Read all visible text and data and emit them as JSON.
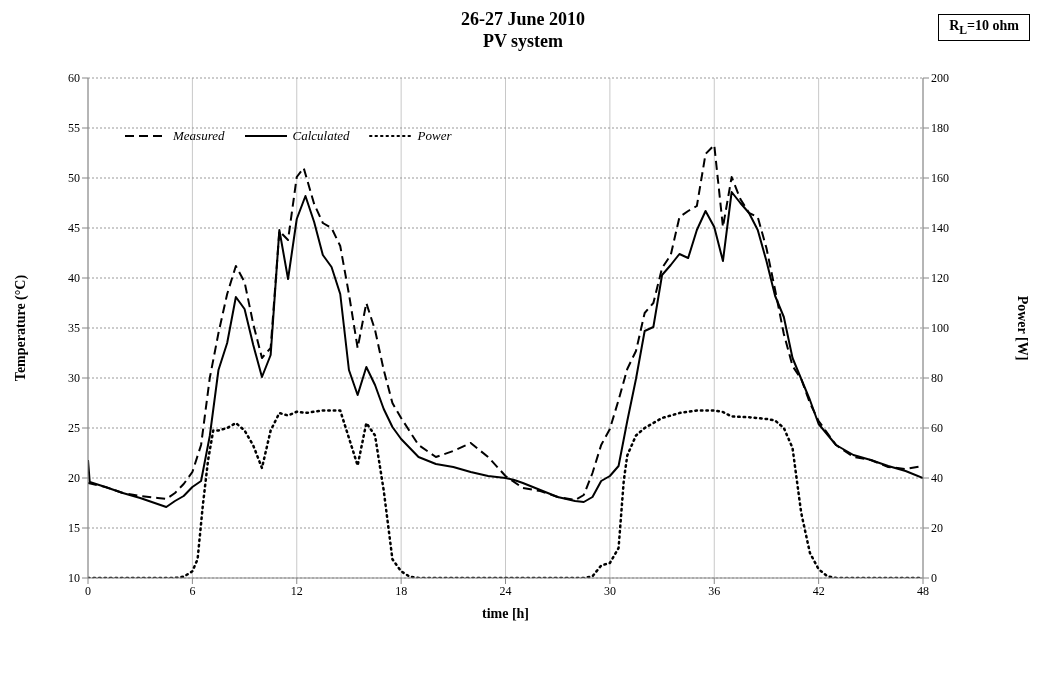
{
  "chart_data": {
    "type": "line",
    "title": "26-27 June 2010",
    "subtitle": "PV system",
    "xlabel": "time [h]",
    "ylabel": "Temperature (°C)",
    "y2label": "Power [W]",
    "annotations": [
      "R$_{L}$=10 ohm"
    ],
    "xlim": [
      0,
      48
    ],
    "xticks": [
      0,
      6,
      12,
      18,
      24,
      30,
      36,
      42,
      48
    ],
    "ylim": [
      10,
      60
    ],
    "yticks": [
      10,
      15,
      20,
      25,
      30,
      35,
      40,
      45,
      50,
      55,
      60
    ],
    "y2lim": [
      0,
      200
    ],
    "y2ticks": [
      0,
      20,
      40,
      60,
      80,
      100,
      120,
      140,
      160,
      180,
      200
    ],
    "grid": true,
    "legend": "top left",
    "marker": "none",
    "series": [
      {
        "name": "Measured",
        "color": "#000000",
        "line_style": "dashed",
        "x": [
          0,
          1,
          2,
          3,
          4,
          4.5,
          5,
          5.5,
          6,
          6.5,
          7,
          7.5,
          8,
          8.5,
          9,
          9.5,
          10,
          10.5,
          11,
          11.5,
          12,
          12.4,
          13,
          13.5,
          14,
          14.5,
          15,
          15.5,
          16,
          16.5,
          17,
          17.5,
          18,
          19,
          20,
          21,
          22,
          23,
          24,
          25,
          26,
          27,
          28,
          28.5,
          29,
          29.5,
          30,
          30.5,
          31,
          31.5,
          32,
          32.5,
          33,
          33.5,
          34,
          34.5,
          35,
          35.5,
          36,
          36.5,
          37,
          37.5,
          38,
          38.5,
          39,
          39.5,
          40,
          40.5,
          41,
          41.5,
          42,
          43,
          44,
          45,
          46,
          47,
          48
        ],
        "values": [
          19.5,
          19.1,
          18.5,
          18.2,
          18.0,
          17.9,
          18.5,
          19.4,
          20.6,
          23.3,
          30,
          34.5,
          38.4,
          41.2,
          39.6,
          35.4,
          32,
          33,
          44.7,
          43.8,
          50.1,
          51,
          47.4,
          45.5,
          45,
          43.2,
          38.4,
          33,
          37.5,
          34.8,
          30.8,
          27.5,
          26,
          23.3,
          22.1,
          22.7,
          23.5,
          22.1,
          20.2,
          19,
          18.7,
          18.1,
          17.8,
          18.3,
          20.5,
          23.3,
          24.9,
          27.8,
          30.9,
          32.7,
          36.5,
          37.5,
          41,
          42.3,
          46.1,
          46.7,
          47.2,
          52.4,
          53.3,
          45.1,
          50.1,
          47.9,
          46.5,
          46.1,
          43,
          38.8,
          34.4,
          31.2,
          29.9,
          27.5,
          25.7,
          23.3,
          22.1,
          21.8,
          21.1,
          20.9,
          21.2
        ]
      },
      {
        "name": "Calculated",
        "color": "#000000",
        "line_style": "solid",
        "x": [
          0,
          0.1,
          1,
          2,
          3,
          4,
          4.5,
          5,
          5.5,
          6,
          6.5,
          7,
          7.5,
          8,
          8.5,
          9,
          9.5,
          10,
          10.5,
          11,
          11.5,
          12,
          12.5,
          13,
          13.5,
          14,
          14.5,
          15,
          15.5,
          16,
          16.5,
          17,
          17.5,
          18,
          19,
          20,
          21,
          22,
          23,
          24,
          24.5,
          25,
          26,
          27,
          28,
          28.5,
          29,
          29.5,
          30,
          30.5,
          31,
          31.5,
          32,
          32.5,
          33,
          33.5,
          34,
          34.5,
          35,
          35.5,
          36,
          36.5,
          37,
          37.5,
          38,
          38.5,
          39,
          39.5,
          40,
          40.5,
          41,
          41.5,
          42,
          43,
          44,
          45,
          46,
          47,
          48
        ],
        "values": [
          21.8,
          19.6,
          19.1,
          18.5,
          18,
          17.4,
          17.1,
          17.7,
          18.2,
          19.1,
          19.7,
          24.2,
          30.8,
          33.5,
          38.1,
          36.9,
          33.3,
          30.1,
          32.3,
          44.8,
          39.9,
          45.9,
          48.2,
          45.6,
          42.3,
          41.1,
          38.4,
          30.8,
          28.3,
          31.1,
          29.3,
          26.9,
          25.1,
          23.9,
          22.1,
          21.4,
          21.1,
          20.6,
          20.2,
          20,
          19.8,
          19.5,
          18.8,
          18.1,
          17.7,
          17.6,
          18.1,
          19.7,
          20.2,
          21.2,
          25.7,
          29.9,
          34.7,
          35.1,
          40.3,
          41.3,
          42.4,
          42,
          44.8,
          46.7,
          45.1,
          41.7,
          48.6,
          47.5,
          46.5,
          44.8,
          41.7,
          38.2,
          36.1,
          32,
          29.9,
          27.8,
          25.4,
          23.3,
          22.3,
          21.8,
          21.2,
          20.7,
          20
        ]
      },
      {
        "name": "Power",
        "color": "#000000",
        "line_style": "dotted",
        "axis": "y2",
        "x": [
          0,
          5,
          5.5,
          6,
          6.3,
          6.6,
          6.9,
          7.2,
          7.5,
          8,
          8.5,
          9,
          9.5,
          10,
          10.5,
          11,
          11.5,
          12,
          12.5,
          13,
          13.5,
          14,
          14.5,
          15,
          15.5,
          16,
          16.5,
          17,
          17.5,
          18,
          18.5,
          19,
          24,
          28.5,
          29,
          29.5,
          30,
          30.5,
          30.8,
          31,
          31.5,
          32,
          32.5,
          33,
          33.5,
          34,
          35,
          36,
          36.5,
          37,
          38,
          39,
          39.5,
          40,
          40.5,
          41,
          41.5,
          42,
          42.5,
          43,
          48
        ],
        "values": [
          0,
          0,
          0.5,
          2.7,
          7.5,
          29,
          47,
          59,
          59,
          60,
          62,
          59,
          53,
          44,
          59,
          66,
          65,
          66.5,
          66,
          66.5,
          67,
          67,
          67,
          56,
          45,
          62,
          57,
          35,
          7.5,
          2.7,
          0.5,
          0,
          0,
          0,
          0.7,
          5,
          6,
          12,
          39,
          49,
          57,
          60,
          62,
          64,
          65,
          66,
          67,
          67,
          66.4,
          64.6,
          64.3,
          63.6,
          63,
          60,
          52,
          26,
          10,
          3.5,
          0.7,
          0,
          0
        ]
      }
    ]
  }
}
